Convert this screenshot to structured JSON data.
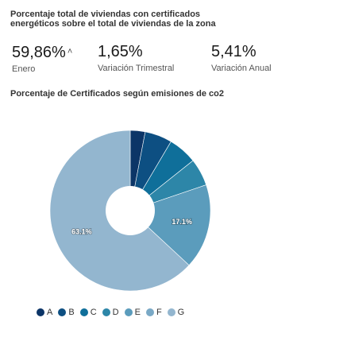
{
  "stats": {
    "title": "Porcentaje total de viviendas con certificados energéticos sobre el total de viviendas de la zona",
    "items": [
      {
        "value": "59,86%",
        "label": "Enero",
        "trend": "˄"
      },
      {
        "value": "1,65%",
        "label": "Variación Trimestral"
      },
      {
        "value": "5,41%",
        "label": "Variación Anual"
      }
    ]
  },
  "chart_data": {
    "type": "pie",
    "title": "Porcentaje de Certificados según emisiones de co2",
    "categories": [
      "A",
      "B",
      "C",
      "D",
      "E",
      "F",
      "G"
    ],
    "values": [
      3.0,
      5.5,
      5.8,
      5.5,
      17.1,
      0,
      63.1
    ],
    "data_labels": {
      "E": "17.1%",
      "G": "63.1%"
    },
    "colors": [
      "#0c3567",
      "#0d4f82",
      "#0f6f9a",
      "#2d86a8",
      "#5b9cbc",
      "#7aa9c6",
      "#93b6cf"
    ],
    "donut": true,
    "legend_position": "bottom"
  }
}
